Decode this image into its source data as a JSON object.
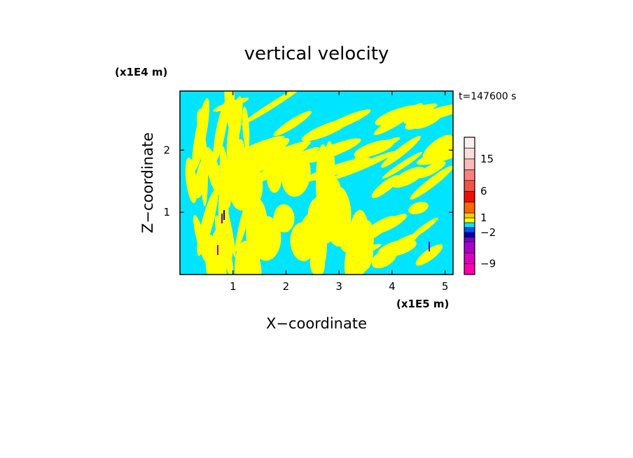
{
  "chart_data": {
    "type": "heatmap",
    "title": "vertical velocity",
    "xlabel": "X−coordinate",
    "ylabel": "Z−coordinate",
    "x_unit": "(x1E5 m)",
    "y_unit": "(x1E4 m)",
    "time_label": "t=147600 s",
    "xlim": [
      0,
      5.15
    ],
    "ylim": [
      0,
      2.95
    ],
    "xticks": [
      1,
      2,
      3,
      4,
      5
    ],
    "yticks": [
      1,
      2
    ],
    "grid": false,
    "colorbar": {
      "placement": "right",
      "levels": [
        -12,
        -9,
        -6,
        -4,
        -3,
        -2,
        -1,
        0,
        1,
        2,
        4,
        6,
        9,
        12,
        15,
        18,
        21
      ],
      "colors": [
        "#ff00aa",
        "#dd00bb",
        "#aa00cc",
        "#7700cc",
        "#0000aa",
        "#0055ff",
        "#00e5ff",
        "#ffff00",
        "#ffcc00",
        "#ff6600",
        "#ee1100",
        "#ee5544",
        "#ff8080",
        "#ffbbbb",
        "#ffdddd",
        "#ffeeee"
      ],
      "tick_labels": [
        "15",
        "6",
        "1",
        "−2",
        "−9"
      ],
      "tick_values": [
        15,
        6,
        1,
        -2,
        -9
      ]
    },
    "field_colors": {
      "positive": "#ffff00",
      "negative": "#00e5ff"
    }
  }
}
